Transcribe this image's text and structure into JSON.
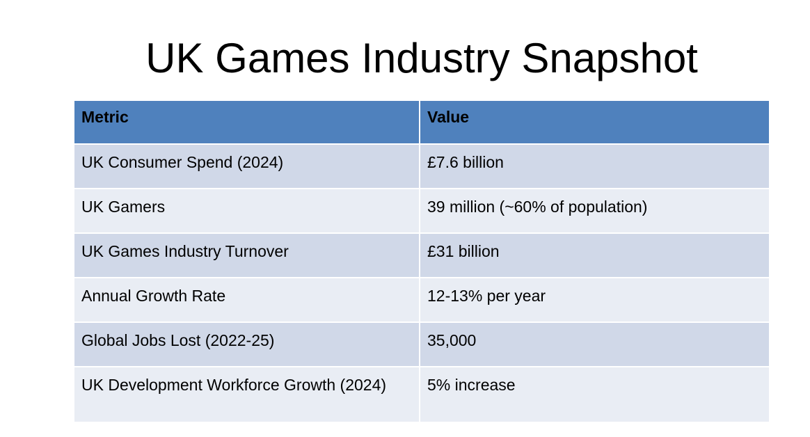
{
  "slide": {
    "title": "UK Games Industry Snapshot"
  },
  "table": {
    "headers": [
      "Metric",
      "Value"
    ],
    "rows": [
      {
        "metric": "UK Consumer Spend (2024)",
        "value": "£7.6 billion"
      },
      {
        "metric": "UK Gamers",
        "value": "39 million (~60% of population)"
      },
      {
        "metric": "UK Games Industry Turnover",
        "value": "£31 billion"
      },
      {
        "metric": "Annual Growth Rate",
        "value": "12-13% per year"
      },
      {
        "metric": "Global Jobs Lost (2022-25)",
        "value": "35,000"
      },
      {
        "metric": "UK Development Workforce Growth (2024)",
        "value": "5% increase"
      }
    ]
  },
  "colors": {
    "header_fill": "#4f81bd",
    "row_fill_dark": "#d0d8e8",
    "row_fill_light": "#e9edf4"
  }
}
